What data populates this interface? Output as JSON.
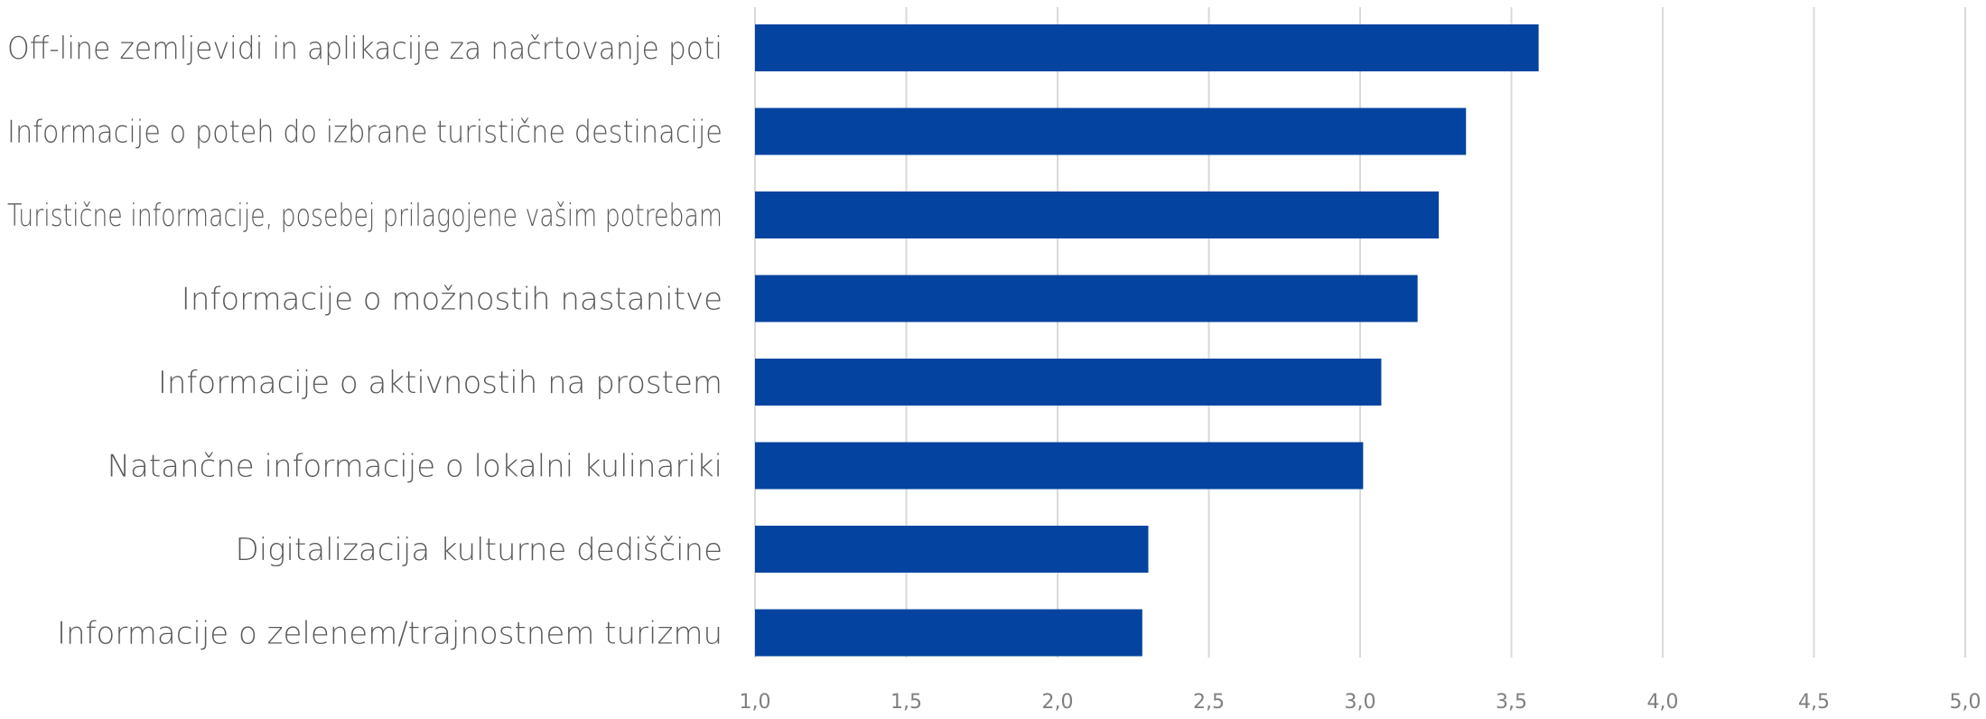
{
  "chart_data": {
    "type": "bar",
    "orientation": "horizontal",
    "categories": [
      "Off-line zemljevidi in aplikacije za načrtovanje poti",
      "Informacije o poteh do izbrane turistične destinacije",
      "Turistične informacije, posebej prilagojene vašim potrebam",
      "Informacije o možnostih nastanitve",
      "Informacije o aktivnostih na prostem",
      "Natančne informacije o lokalni kulinariki",
      "Digitalizacija kulturne dediščine",
      "Informacije o zelenem/trajnostnem turizmu"
    ],
    "values": [
      3.59,
      3.35,
      3.26,
      3.19,
      3.07,
      3.01,
      2.3,
      2.28
    ],
    "xlim": [
      1.0,
      5.0
    ],
    "x_ticks": [
      "1,0",
      "1,5",
      "2,0",
      "2,5",
      "3,0",
      "3,5",
      "4,0",
      "4,5",
      "5,0"
    ],
    "x_tick_values": [
      1.0,
      1.5,
      2.0,
      2.5,
      3.0,
      3.5,
      4.0,
      4.5,
      5.0
    ],
    "grid": "vertical",
    "legend": "none",
    "title": "",
    "xlabel": "",
    "ylabel": "",
    "bar_color": "#0444a0",
    "grid_color": "#d9d9d9"
  }
}
